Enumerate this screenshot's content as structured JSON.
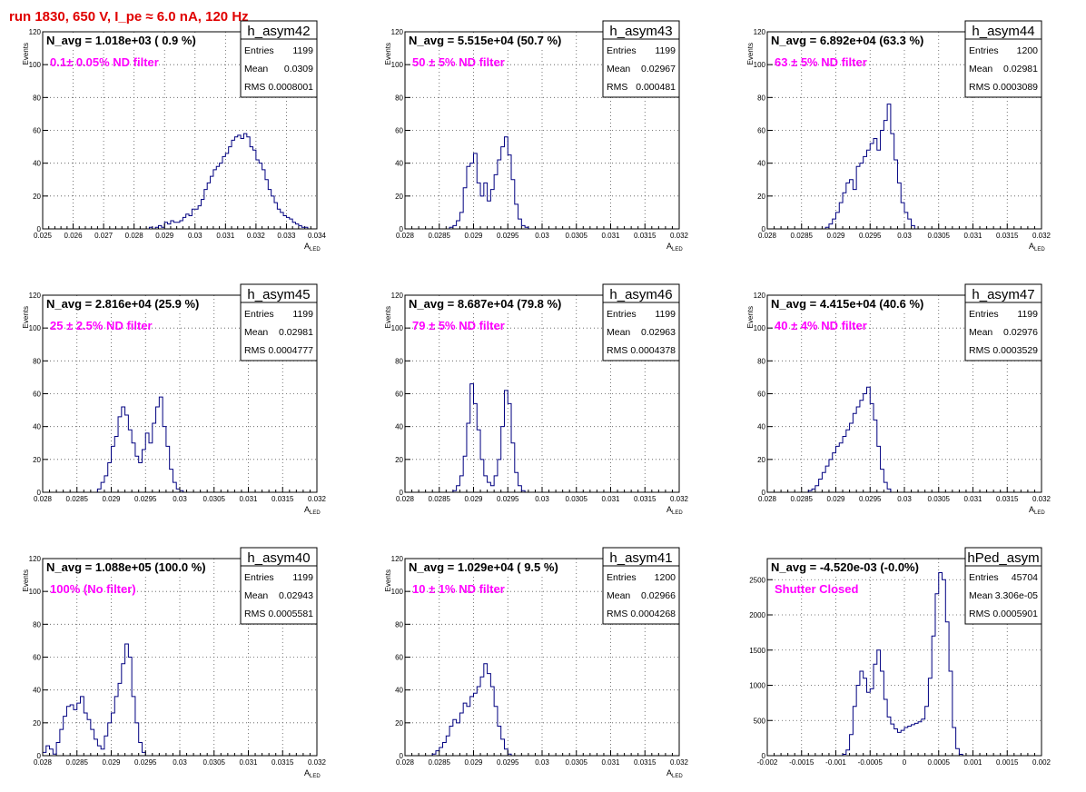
{
  "page_title": "run 1830,   650 V, I_pe ≈ 6.0 nA, 120 Hz",
  "colors": {
    "hist_line": "#000080",
    "filter_text": "#ff00ff",
    "title_text": "#e00000",
    "frame": "#000000",
    "grid": "#555555"
  },
  "stats_labels": {
    "entries": "Entries",
    "mean": "Mean",
    "rms": "RMS"
  },
  "chart_data": [
    {
      "type": "histogram",
      "name": "h_asym42",
      "navg": "N_avg = 1.018e+03 ( 0.9 %)",
      "filter": "0.1± 0.05% ND filter",
      "entries": "1199",
      "mean": "0.0309",
      "rms": "0.0008001",
      "xlabel": "A",
      "xlabel_sub": "LED",
      "ylabel": "Events",
      "xlim": [
        0.025,
        0.034
      ],
      "ylim": [
        0,
        120
      ],
      "xticks": [
        "0.025",
        "0.026",
        "0.027",
        "0.028",
        "0.029",
        "0.03",
        "0.031",
        "0.032",
        "0.033",
        "0.034"
      ],
      "yticks": [
        "0",
        "20",
        "40",
        "60",
        "80",
        "100",
        "120"
      ],
      "grid": true,
      "bin_width": 0.0001,
      "values": [
        0,
        0,
        0,
        0,
        0,
        0,
        0,
        0,
        0,
        0,
        0,
        0,
        0,
        0,
        0,
        0,
        0,
        0,
        0,
        0,
        0,
        0,
        0,
        0,
        0,
        0,
        0,
        0,
        0,
        0,
        0,
        0,
        0,
        0,
        0,
        1,
        0,
        1,
        2,
        1,
        4,
        3,
        5,
        4,
        4,
        5,
        7,
        9,
        8,
        12,
        12,
        14,
        18,
        24,
        28,
        32,
        36,
        38,
        40,
        44,
        46,
        50,
        54,
        56,
        57,
        55,
        58,
        56,
        50,
        48,
        42,
        40,
        36,
        30,
        24,
        20,
        16,
        12,
        10,
        8,
        7,
        6,
        4,
        3,
        2,
        1,
        1,
        0,
        0,
        0
      ]
    },
    {
      "type": "histogram",
      "name": "h_asym43",
      "navg": "N_avg = 5.515e+04 (50.7 %)",
      "filter": "50 ± 5% ND filter",
      "entries": "1199",
      "mean": "0.02967",
      "rms": "0.000481",
      "xlabel": "A",
      "xlabel_sub": "LED",
      "ylabel": "Events",
      "xlim": [
        0.028,
        0.032
      ],
      "ylim": [
        0,
        120
      ],
      "xticks": [
        "0.028",
        "0.0285",
        "0.029",
        "0.0295",
        "0.03",
        "0.0305",
        "0.031",
        "0.0315",
        "0.032"
      ],
      "yticks": [
        "0",
        "20",
        "40",
        "60",
        "80",
        "100",
        "120"
      ],
      "grid": true,
      "bin_width": 5e-05,
      "values": [
        0,
        0,
        0,
        0,
        0,
        0,
        0,
        0,
        0,
        0,
        0,
        0,
        0,
        1,
        2,
        5,
        10,
        25,
        38,
        40,
        46,
        28,
        20,
        28,
        17,
        24,
        33,
        42,
        50,
        56,
        45,
        30,
        15,
        6,
        2,
        1,
        0,
        0,
        0,
        0,
        0,
        0,
        0,
        0,
        0,
        0,
        0,
        0,
        0,
        0,
        0,
        0,
        0,
        0,
        0,
        0,
        0,
        0,
        0,
        0,
        0,
        0,
        0,
        0,
        0,
        0,
        0,
        0,
        0,
        0,
        0,
        0,
        0,
        0,
        0,
        0,
        0,
        0,
        0,
        0,
        0
      ]
    },
    {
      "type": "histogram",
      "name": "h_asym44",
      "navg": "N_avg = 6.892e+04 (63.3 %)",
      "filter": "63 ± 5% ND filter",
      "entries": "1200",
      "mean": "0.02981",
      "rms": "0.0003089",
      "xlabel": "A",
      "xlabel_sub": "LED",
      "ylabel": "Events",
      "xlim": [
        0.028,
        0.032
      ],
      "ylim": [
        0,
        120
      ],
      "xticks": [
        "0.028",
        "0.0285",
        "0.029",
        "0.0295",
        "0.03",
        "0.0305",
        "0.031",
        "0.0315",
        "0.032"
      ],
      "yticks": [
        "0",
        "20",
        "40",
        "60",
        "80",
        "100",
        "120"
      ],
      "grid": true,
      "bin_width": 5e-05,
      "values": [
        0,
        0,
        0,
        0,
        0,
        0,
        0,
        0,
        0,
        0,
        0,
        0,
        0,
        0,
        0,
        0,
        0,
        1,
        3,
        6,
        10,
        16,
        22,
        28,
        30,
        24,
        38,
        40,
        44,
        48,
        52,
        55,
        48,
        60,
        66,
        76,
        58,
        42,
        28,
        16,
        10,
        6,
        2,
        0,
        0,
        0,
        0,
        0,
        0,
        0,
        0,
        0,
        0,
        0,
        0,
        0,
        0,
        0,
        0,
        0,
        0,
        0,
        0,
        0,
        0,
        0,
        0,
        0,
        0,
        0,
        0,
        0,
        0,
        0,
        0,
        0,
        0,
        0,
        0,
        0,
        0
      ]
    },
    {
      "type": "histogram",
      "name": "h_asym45",
      "navg": "N_avg = 2.816e+04 (25.9 %)",
      "filter": "25 ± 2.5% ND filter",
      "entries": "1199",
      "mean": "0.02981",
      "rms": "0.0004777",
      "xlabel": "A",
      "xlabel_sub": "LED",
      "ylabel": "Events",
      "xlim": [
        0.028,
        0.032
      ],
      "ylim": [
        0,
        120
      ],
      "xticks": [
        "0.028",
        "0.0285",
        "0.029",
        "0.0295",
        "0.03",
        "0.0305",
        "0.031",
        "0.0315",
        "0.032"
      ],
      "yticks": [
        "0",
        "20",
        "40",
        "60",
        "80",
        "100",
        "120"
      ],
      "grid": true,
      "bin_width": 5e-05,
      "values": [
        0,
        0,
        0,
        0,
        0,
        0,
        0,
        0,
        0,
        0,
        0,
        0,
        0,
        0,
        0,
        0,
        2,
        6,
        10,
        18,
        28,
        34,
        46,
        52,
        47,
        38,
        30,
        22,
        18,
        26,
        36,
        30,
        42,
        52,
        58,
        40,
        28,
        14,
        6,
        2,
        1,
        0,
        0,
        0,
        0,
        0,
        0,
        0,
        0,
        0,
        0,
        0,
        0,
        0,
        0,
        0,
        0,
        0,
        0,
        0,
        0,
        0,
        0,
        0,
        0,
        0,
        0,
        0,
        0,
        0,
        0,
        0,
        0,
        0,
        0,
        0,
        0,
        0,
        0,
        0,
        0
      ]
    },
    {
      "type": "histogram",
      "name": "h_asym46",
      "navg": "N_avg = 8.687e+04 (79.8 %)",
      "filter": "79 ± 5% ND filter",
      "entries": "1199",
      "mean": "0.02963",
      "rms": "0.0004378",
      "xlabel": "A",
      "xlabel_sub": "LED",
      "ylabel": "Events",
      "xlim": [
        0.028,
        0.032
      ],
      "ylim": [
        0,
        120
      ],
      "xticks": [
        "0.028",
        "0.0285",
        "0.029",
        "0.0295",
        "0.03",
        "0.0305",
        "0.031",
        "0.0315",
        "0.032"
      ],
      "yticks": [
        "0",
        "20",
        "40",
        "60",
        "80",
        "100",
        "120"
      ],
      "grid": true,
      "bin_width": 5e-05,
      "values": [
        0,
        0,
        0,
        0,
        0,
        0,
        0,
        0,
        0,
        0,
        0,
        0,
        0,
        0,
        1,
        4,
        10,
        22,
        42,
        66,
        54,
        38,
        20,
        10,
        6,
        4,
        10,
        20,
        40,
        62,
        54,
        30,
        12,
        4,
        1,
        0,
        0,
        0,
        0,
        0,
        0,
        0,
        0,
        0,
        0,
        0,
        0,
        0,
        0,
        0,
        0,
        0,
        0,
        0,
        0,
        0,
        0,
        0,
        0,
        0,
        0,
        0,
        0,
        0,
        0,
        0,
        0,
        0,
        0,
        0,
        0,
        0,
        0,
        0,
        0,
        0,
        0,
        0,
        0,
        0,
        0
      ]
    },
    {
      "type": "histogram",
      "name": "h_asym47",
      "navg": "N_avg = 4.415e+04 (40.6 %)",
      "filter": "40 ± 4% ND filter",
      "entries": "1199",
      "mean": "0.02976",
      "rms": "0.0003529",
      "xlabel": "A",
      "xlabel_sub": "LED",
      "ylabel": "Events",
      "xlim": [
        0.028,
        0.032
      ],
      "ylim": [
        0,
        120
      ],
      "xticks": [
        "0.028",
        "0.0285",
        "0.029",
        "0.0295",
        "0.03",
        "0.0305",
        "0.031",
        "0.0315",
        "0.032"
      ],
      "yticks": [
        "0",
        "20",
        "40",
        "60",
        "80",
        "100",
        "120"
      ],
      "grid": true,
      "bin_width": 5e-05,
      "values": [
        0,
        0,
        0,
        0,
        0,
        0,
        0,
        0,
        0,
        0,
        0,
        0,
        1,
        2,
        4,
        8,
        12,
        16,
        20,
        24,
        28,
        30,
        34,
        38,
        42,
        48,
        52,
        56,
        60,
        64,
        54,
        44,
        28,
        14,
        6,
        2,
        0,
        0,
        0,
        0,
        0,
        0,
        0,
        0,
        0,
        0,
        0,
        0,
        0,
        0,
        0,
        0,
        0,
        0,
        0,
        0,
        0,
        0,
        0,
        0,
        0,
        0,
        0,
        0,
        0,
        0,
        0,
        0,
        0,
        0,
        0,
        0,
        0,
        0,
        0,
        0,
        0,
        0,
        0,
        0,
        0
      ]
    },
    {
      "type": "histogram",
      "name": "h_asym40",
      "navg": "N_avg = 1.088e+05 (100.0 %)",
      "filter": "100% (No filter)",
      "entries": "1199",
      "mean": "0.02943",
      "rms": "0.0005581",
      "xlabel": "A",
      "xlabel_sub": "LED",
      "ylabel": "Events",
      "xlim": [
        0.028,
        0.032
      ],
      "ylim": [
        0,
        120
      ],
      "xticks": [
        "0.028",
        "0.0285",
        "0.029",
        "0.0295",
        "0.03",
        "0.0305",
        "0.031",
        "0.0315",
        "0.032"
      ],
      "yticks": [
        "0",
        "20",
        "40",
        "60",
        "80",
        "100",
        "120"
      ],
      "grid": true,
      "bin_width": 5e-05,
      "values": [
        2,
        6,
        4,
        1,
        8,
        16,
        24,
        30,
        31,
        28,
        32,
        36,
        26,
        22,
        16,
        10,
        6,
        4,
        12,
        20,
        26,
        36,
        44,
        56,
        68,
        60,
        36,
        20,
        8,
        2,
        0,
        0,
        0,
        0,
        0,
        0,
        0,
        0,
        0,
        0,
        0,
        0,
        0,
        0,
        0,
        0,
        0,
        0,
        0,
        0,
        0,
        0,
        0,
        0,
        0,
        0,
        0,
        0,
        0,
        0,
        0,
        0,
        0,
        0,
        0,
        0,
        0,
        0,
        0,
        0,
        0,
        0,
        0,
        0,
        0,
        0,
        0,
        0,
        0,
        0,
        0
      ]
    },
    {
      "type": "histogram",
      "name": "h_asym41",
      "navg": "N_avg = 1.029e+04 ( 9.5 %)",
      "filter": "10 ± 1% ND filter",
      "entries": "1200",
      "mean": "0.02966",
      "rms": "0.0004268",
      "xlabel": "A",
      "xlabel_sub": "LED",
      "ylabel": "Events",
      "xlim": [
        0.028,
        0.032
      ],
      "ylim": [
        0,
        120
      ],
      "xticks": [
        "0.028",
        "0.0285",
        "0.029",
        "0.0295",
        "0.03",
        "0.0305",
        "0.031",
        "0.0315",
        "0.032"
      ],
      "yticks": [
        "0",
        "20",
        "40",
        "60",
        "80",
        "100",
        "120"
      ],
      "grid": true,
      "bin_width": 5e-05,
      "values": [
        0,
        0,
        0,
        0,
        0,
        0,
        0,
        0,
        1,
        3,
        5,
        8,
        12,
        18,
        22,
        20,
        26,
        32,
        30,
        36,
        38,
        42,
        48,
        56,
        50,
        42,
        30,
        18,
        10,
        4,
        1,
        0,
        0,
        0,
        0,
        0,
        0,
        0,
        0,
        0,
        0,
        0,
        0,
        0,
        0,
        0,
        0,
        0,
        0,
        0,
        0,
        0,
        0,
        0,
        0,
        0,
        0,
        0,
        0,
        0,
        0,
        0,
        0,
        0,
        0,
        0,
        0,
        0,
        0,
        0,
        0,
        0,
        0,
        0,
        0,
        0,
        0,
        0,
        0,
        0,
        0
      ]
    },
    {
      "type": "histogram",
      "name": "hPed_asym",
      "navg": "N_avg = -4.520e-03 (-0.0%)",
      "filter": "Shutter Closed",
      "entries": "45704",
      "mean": "3.306e-05",
      "rms": "0.0005901",
      "xlabel": "",
      "xlabel_sub": "",
      "ylabel": "",
      "xlim": [
        -0.002,
        0.002
      ],
      "ylim": [
        0,
        2800
      ],
      "xticks": [
        "-0.002",
        "-0.0015",
        "-0.001",
        "-0.0005",
        "0",
        "0.0005",
        "0.001",
        "0.0015",
        "0.002"
      ],
      "yticks": [
        "0",
        "500",
        "1000",
        "1500",
        "2000",
        "2500"
      ],
      "grid": true,
      "bin_width": 5e-05,
      "values": [
        0,
        0,
        0,
        0,
        0,
        0,
        0,
        0,
        0,
        0,
        0,
        0,
        0,
        0,
        0,
        0,
        0,
        0,
        0,
        0,
        0,
        0,
        20,
        80,
        300,
        700,
        1000,
        1200,
        1100,
        900,
        950,
        1300,
        1500,
        1200,
        800,
        550,
        450,
        380,
        330,
        360,
        400,
        420,
        440,
        460,
        480,
        520,
        700,
        1100,
        1700,
        2300,
        2600,
        2500,
        1900,
        1200,
        400,
        100,
        20,
        0,
        0,
        0,
        0,
        0,
        0,
        0,
        0,
        0,
        0,
        0,
        0,
        0,
        0,
        0,
        0,
        0,
        0,
        0,
        0,
        0,
        0,
        0
      ]
    }
  ]
}
